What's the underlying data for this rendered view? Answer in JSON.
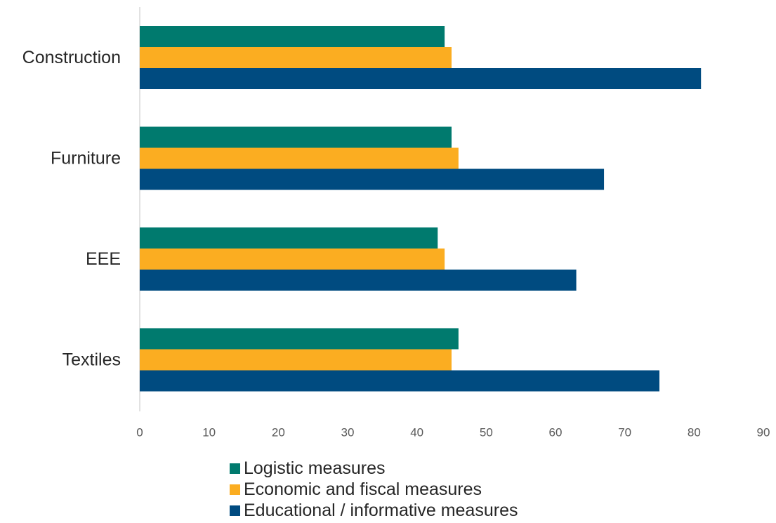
{
  "chart_data": {
    "type": "bar",
    "orientation": "horizontal",
    "title": "",
    "xlabel": "",
    "ylabel": "",
    "categories": [
      "Construction",
      "Furniture",
      "EEE",
      "Textiles"
    ],
    "series": [
      {
        "name": "Logistic measures",
        "color": "#007a6e",
        "values": [
          44,
          45,
          43,
          46
        ]
      },
      {
        "name": "Economic and fiscal measures",
        "color": "#fbad21",
        "values": [
          45,
          46,
          44,
          45
        ]
      },
      {
        "name": "Educational / informative measures",
        "color": "#004b80",
        "values": [
          81,
          67,
          63,
          75
        ]
      }
    ],
    "xlim": [
      0,
      90
    ],
    "x_ticks": [
      "0",
      "10",
      "20",
      "30",
      "40",
      "50",
      "60",
      "70",
      "80",
      "90"
    ],
    "grid": false,
    "legend_position": "bottom"
  }
}
